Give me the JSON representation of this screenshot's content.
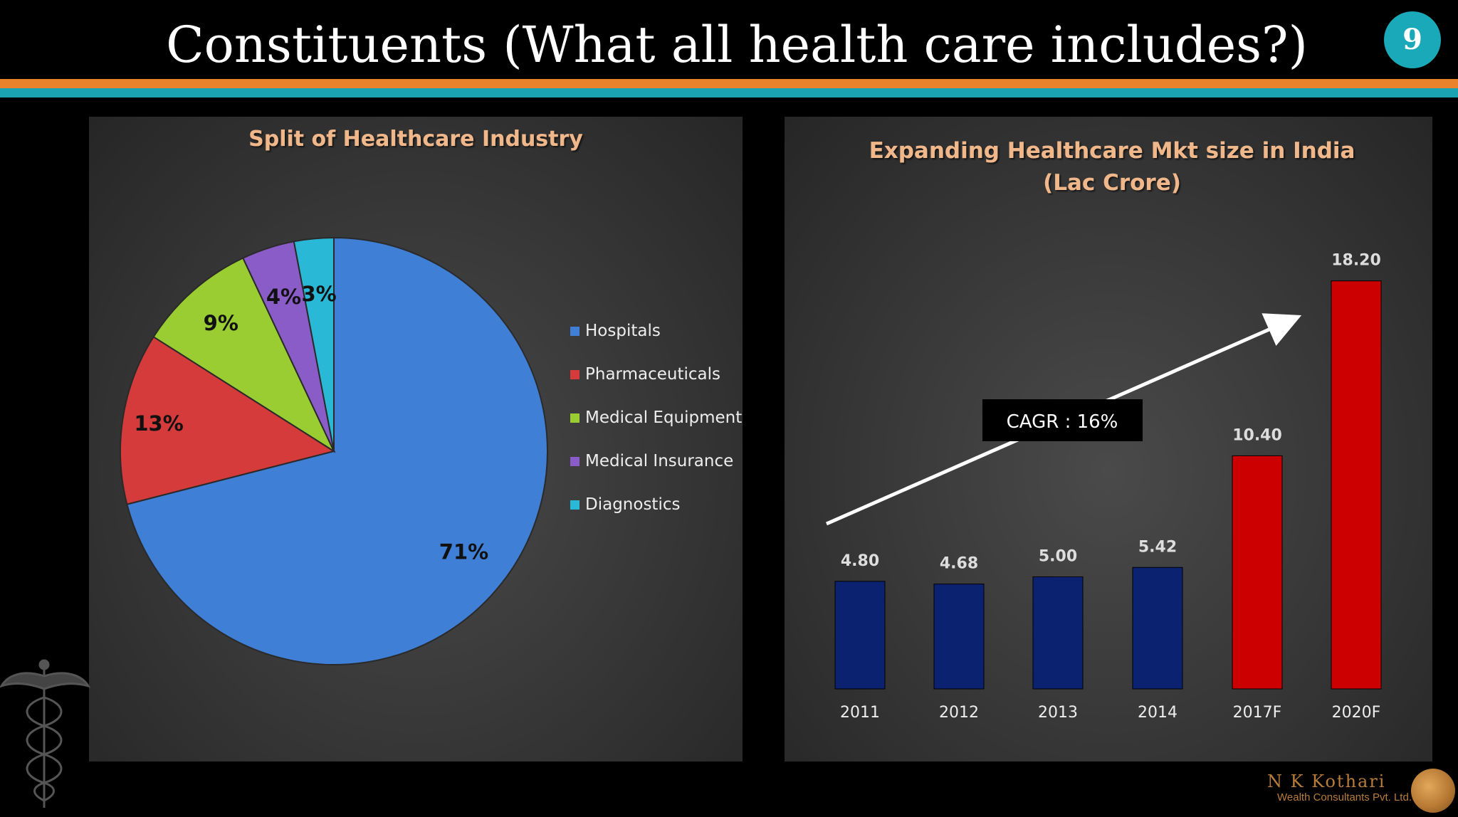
{
  "slide": {
    "title": "Constituents (What all health care includes?)",
    "page_number": "9"
  },
  "colors": {
    "stripe_orange": "#e9822a",
    "stripe_teal": "#1aa4b3",
    "badge": "#1aa9b8"
  },
  "footer": {
    "company_name": "N K Kothari",
    "company_sub": "Wealth Consultants Pvt. Ltd.",
    "logo_icon": "gold-coin-icon",
    "watermark_icon": "caduceus-icon"
  },
  "chart_data": [
    {
      "type": "pie",
      "title": "Split of Healthcare Industry",
      "categories": [
        "Hospitals",
        "Pharmaceuticals",
        "Medical Equipment",
        "Medical Insurance",
        "Diagnostics"
      ],
      "values": [
        71,
        13,
        9,
        4,
        3
      ],
      "labels": [
        "71%",
        "13%",
        "9%",
        "4%",
        "3%"
      ],
      "colors": [
        "#3f7fd6",
        "#d63b3b",
        "#9acd32",
        "#8a5cc7",
        "#29b9d6"
      ],
      "legend": "right"
    },
    {
      "type": "bar",
      "title": "Expanding Healthcare Mkt size in India",
      "subtitle": "(Lac Crore)",
      "categories": [
        "2011",
        "2012",
        "2013",
        "2014",
        "2017F",
        "2020F"
      ],
      "values": [
        4.8,
        4.68,
        5.0,
        5.42,
        10.4,
        18.2
      ],
      "value_labels": [
        "4.80",
        "4.68",
        "5.00",
        "5.42",
        "10.40",
        "18.20"
      ],
      "colors": [
        "#0a2270",
        "#0a2270",
        "#0a2270",
        "#0a2270",
        "#cc0000",
        "#cc0000"
      ],
      "ylim": [
        0,
        20
      ],
      "grid": false,
      "annotation": "CAGR : 16%"
    }
  ]
}
